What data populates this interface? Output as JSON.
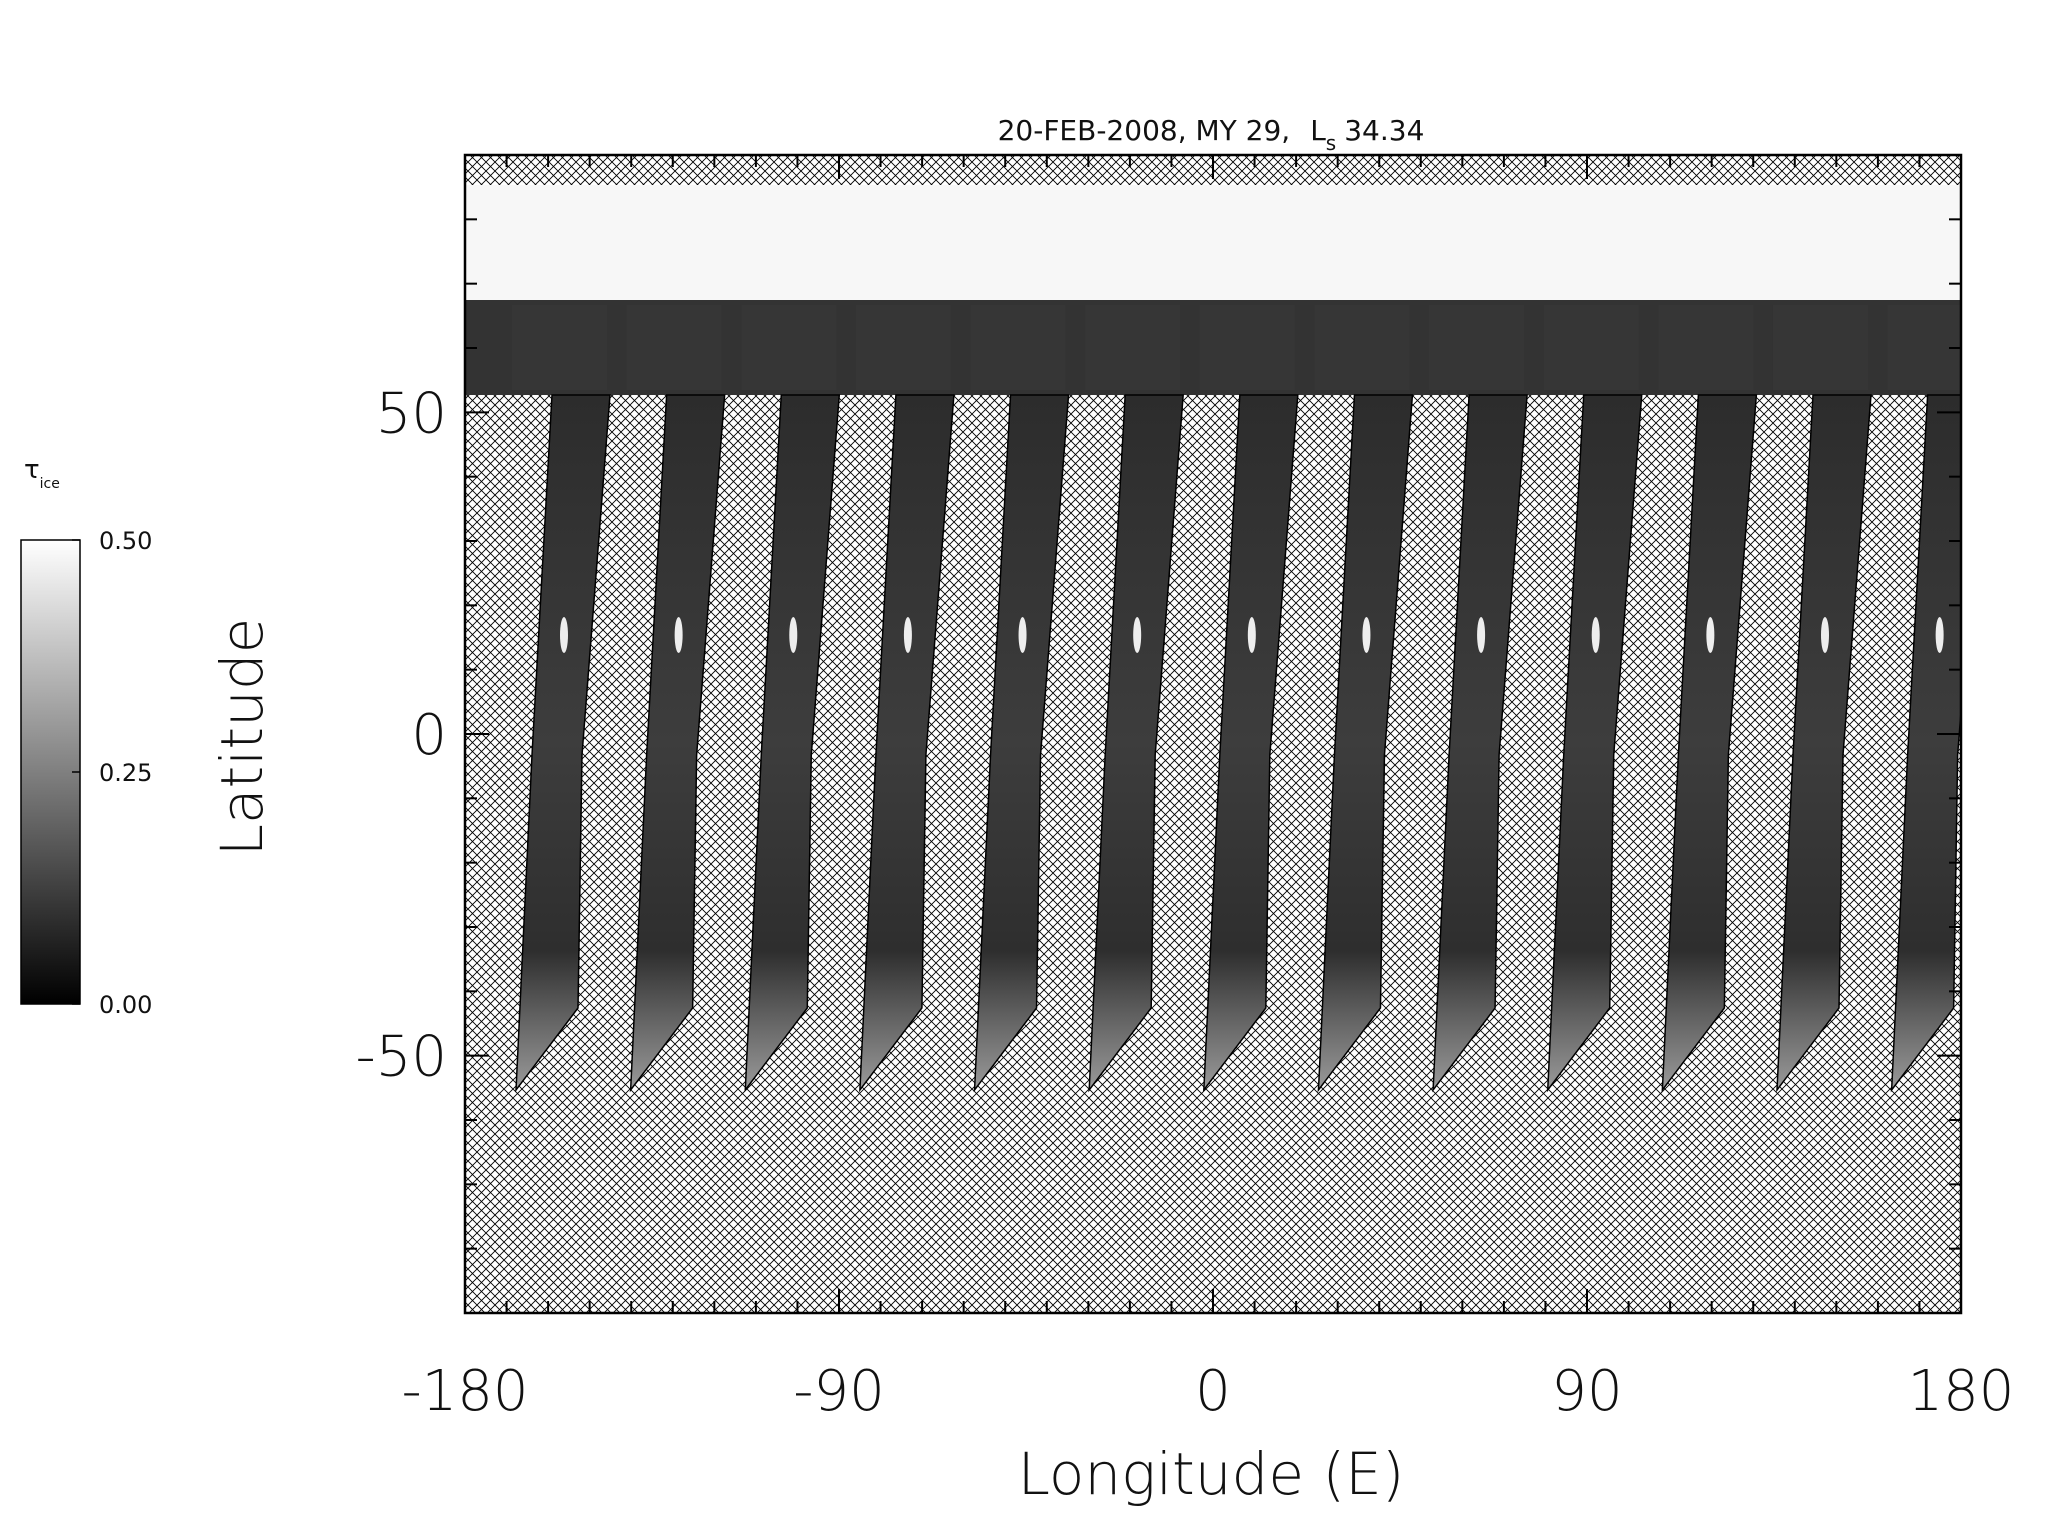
{
  "chart_data": {
    "type": "map",
    "title": {
      "text": "20-FEB-2008, MY 29,",
      "symbol": "L",
      "subscript": "s",
      "value": "34.34"
    },
    "xlabel": "Longitude (E)",
    "ylabel": "Latitude",
    "xlim": [
      -180,
      180
    ],
    "ylim": [
      -90,
      90
    ],
    "xticks": [
      -180,
      -90,
      0,
      90,
      180
    ],
    "yticks": [
      -50,
      0,
      50
    ],
    "xminorticks": [
      -170,
      -160,
      -150,
      -140,
      -130,
      -120,
      -110,
      -100,
      -80,
      -70,
      -60,
      -50,
      -40,
      -30,
      -20,
      -10,
      10,
      20,
      30,
      40,
      50,
      60,
      70,
      80,
      100,
      110,
      120,
      130,
      140,
      150,
      160,
      170
    ],
    "yminorticks": [
      -80,
      -70,
      -60,
      -40,
      -30,
      -20,
      -10,
      10,
      20,
      30,
      40,
      60,
      70,
      80
    ],
    "colorbar": {
      "label": "τ",
      "label_subscript": "ice",
      "clim": [
        0,
        0.5
      ],
      "colors": [
        "#000000",
        "#ffffff"
      ],
      "ticks": [
        {
          "value": 0,
          "label": "0.00"
        },
        {
          "value": 0.25,
          "label": "0.25"
        },
        {
          "value": 0.5,
          "label": "0.50"
        }
      ]
    }
  }
}
